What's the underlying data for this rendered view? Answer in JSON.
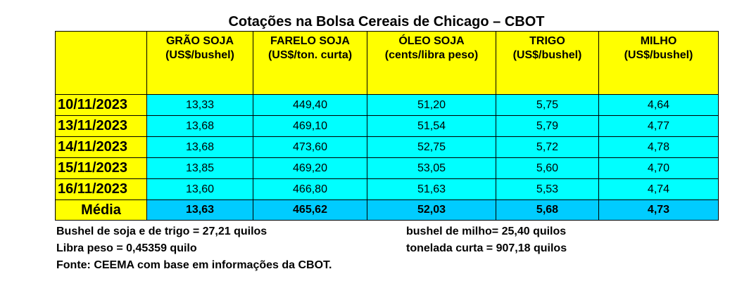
{
  "title": "Cotações na Bolsa Cereais de Chicago – CBOT",
  "headers": [
    {
      "name": "GRÃO SOJA",
      "unit": "(US$/bushel)"
    },
    {
      "name": "FARELO SOJA",
      "unit": "(US$/ton. curta)"
    },
    {
      "name": "ÓLEO SOJA",
      "unit": "(cents/libra peso)"
    },
    {
      "name": "TRIGO",
      "unit": "(US$/bushel)"
    },
    {
      "name": "MILHO",
      "unit": "(US$/bushel)"
    }
  ],
  "rows": [
    {
      "date": "10/11/2023",
      "values": [
        "13,33",
        "449,40",
        "51,20",
        "5,75",
        "4,64"
      ]
    },
    {
      "date": "13/11/2023",
      "values": [
        "13,68",
        "469,10",
        "51,54",
        "5,79",
        "4,77"
      ]
    },
    {
      "date": "14/11/2023",
      "values": [
        "13,68",
        "473,60",
        "52,75",
        "5,72",
        "4,78"
      ]
    },
    {
      "date": "15/11/2023",
      "values": [
        "13,85",
        "469,20",
        "53,05",
        "5,60",
        "4,70"
      ]
    },
    {
      "date": "16/11/2023",
      "values": [
        "13,60",
        "466,80",
        "51,63",
        "5,53",
        "4,74"
      ]
    }
  ],
  "average": {
    "label": "Média",
    "values": [
      "13,63",
      "465,62",
      "52,03",
      "5,68",
      "4,73"
    ]
  },
  "notes": {
    "left1": "Bushel de soja e de trigo = 27,21 quilos",
    "right1": "bushel de milho= 25,40 quilos",
    "left2": "Libra peso = 0,45359 quilo",
    "right2": "tonelada curta = 907,18 quilos",
    "source": "Fonte: CEEMA com base em informações da CBOT."
  }
}
